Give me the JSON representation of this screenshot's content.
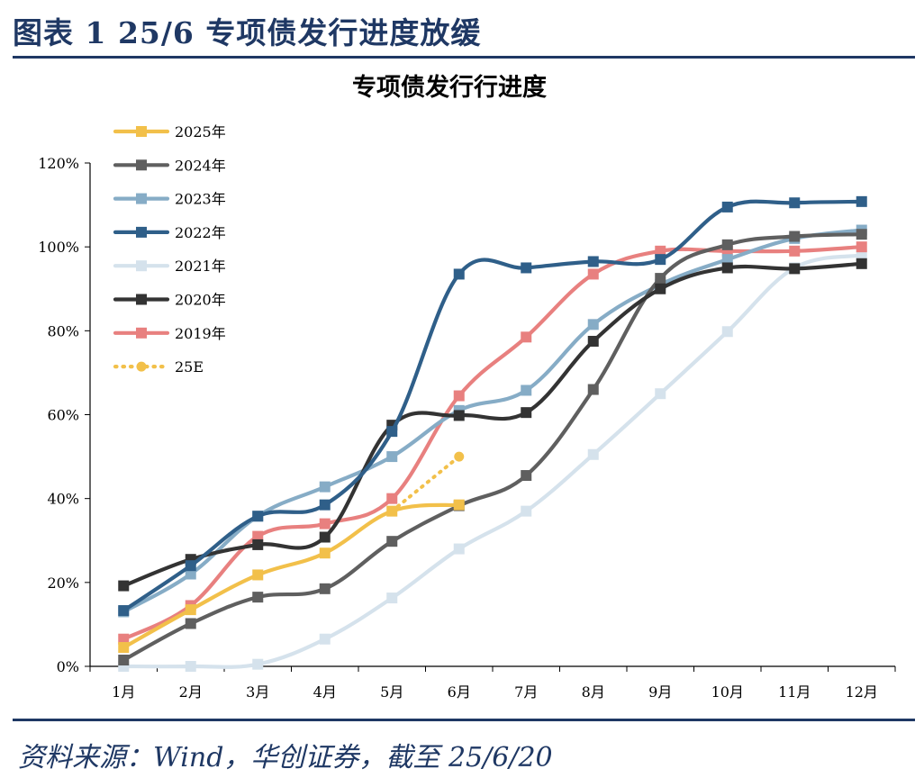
{
  "figure": {
    "title": "图表 1 25/6 专项债发行进度放缓",
    "source": "资料来源：Wind，华创证券，截至 25/6/20"
  },
  "chart_data": {
    "type": "line",
    "title": "专项债发行行进度",
    "categories": [
      "1月",
      "2月",
      "3月",
      "4月",
      "5月",
      "6月",
      "7月",
      "8月",
      "9月",
      "10月",
      "11月",
      "12月"
    ],
    "ylim": [
      0,
      120
    ],
    "yticks": [
      0,
      20,
      40,
      60,
      80,
      100,
      120
    ],
    "ytick_labels": [
      "0%",
      "20%",
      "40%",
      "60%",
      "80%",
      "100%",
      "120%"
    ],
    "unit": "%",
    "legend_position": "top-left",
    "series": [
      {
        "name": "2025年",
        "color": "#f2c04a",
        "style": "solid",
        "values": [
          4.5,
          13.5,
          21.8,
          27.0,
          37.0,
          38.5,
          null,
          null,
          null,
          null,
          null,
          null
        ]
      },
      {
        "name": "2024年",
        "color": "#5f5f5f",
        "style": "solid",
        "values": [
          1.5,
          10.2,
          16.5,
          18.5,
          29.8,
          38.3,
          45.5,
          66.0,
          92.5,
          100.5,
          102.5,
          103.0
        ]
      },
      {
        "name": "2023年",
        "color": "#86acc6",
        "style": "solid",
        "values": [
          13.0,
          22.0,
          35.8,
          42.8,
          50.0,
          61.0,
          65.8,
          81.5,
          91.0,
          97.0,
          102.0,
          104.0
        ]
      },
      {
        "name": "2022年",
        "color": "#2f5f89",
        "style": "solid",
        "values": [
          13.3,
          24.0,
          35.8,
          38.5,
          56.0,
          93.5,
          95.0,
          96.5,
          97.0,
          109.5,
          110.5,
          110.8
        ]
      },
      {
        "name": "2021年",
        "color": "#d5e2ec",
        "style": "solid",
        "values": [
          0.0,
          0.0,
          0.5,
          6.5,
          16.3,
          28.0,
          37.0,
          50.5,
          65.0,
          79.8,
          95.0,
          98.0
        ]
      },
      {
        "name": "2020年",
        "color": "#333333",
        "style": "solid",
        "values": [
          19.2,
          25.5,
          29.0,
          30.8,
          57.5,
          59.8,
          60.5,
          77.5,
          90.0,
          95.0,
          94.8,
          96.0
        ]
      },
      {
        "name": "2019年",
        "color": "#e8807f",
        "style": "solid",
        "values": [
          6.5,
          14.5,
          31.0,
          34.0,
          40.0,
          64.5,
          78.5,
          93.5,
          99.0,
          99.0,
          99.0,
          100.0
        ]
      },
      {
        "name": "25E",
        "color": "#f2c04a",
        "style": "dotted",
        "values": [
          null,
          null,
          null,
          null,
          37.0,
          50.0,
          null,
          null,
          null,
          null,
          null,
          null
        ]
      }
    ]
  }
}
